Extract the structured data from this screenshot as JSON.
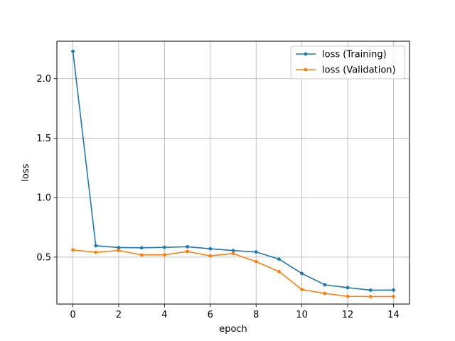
{
  "chart_data": {
    "type": "line",
    "title": "",
    "xlabel": "epoch",
    "ylabel": "loss",
    "xlim": [
      -0.7,
      14.7
    ],
    "ylim": [
      0.105,
      2.315
    ],
    "xticks": [
      0,
      2,
      4,
      6,
      8,
      10,
      12,
      14
    ],
    "yticks": [
      0.5,
      1.0,
      1.5,
      2.0
    ],
    "ytick_labels": [
      "0.5",
      "1.0",
      "1.5",
      "2.0"
    ],
    "grid": true,
    "legend_position": "top-right",
    "x": [
      0,
      1,
      2,
      3,
      4,
      5,
      6,
      7,
      8,
      9,
      10,
      11,
      12,
      13,
      14
    ],
    "series": [
      {
        "name": "loss (Training)",
        "color": "#1f77b4",
        "values": [
          2.23,
          0.595,
          0.58,
          0.578,
          0.582,
          0.587,
          0.57,
          0.555,
          0.543,
          0.483,
          0.362,
          0.267,
          0.243,
          0.222,
          0.223
        ]
      },
      {
        "name": "loss (Validation)",
        "color": "#ff7f0e",
        "values": [
          0.56,
          0.54,
          0.556,
          0.518,
          0.519,
          0.547,
          0.51,
          0.53,
          0.462,
          0.378,
          0.227,
          0.195,
          0.17,
          0.168,
          0.168
        ]
      }
    ]
  }
}
